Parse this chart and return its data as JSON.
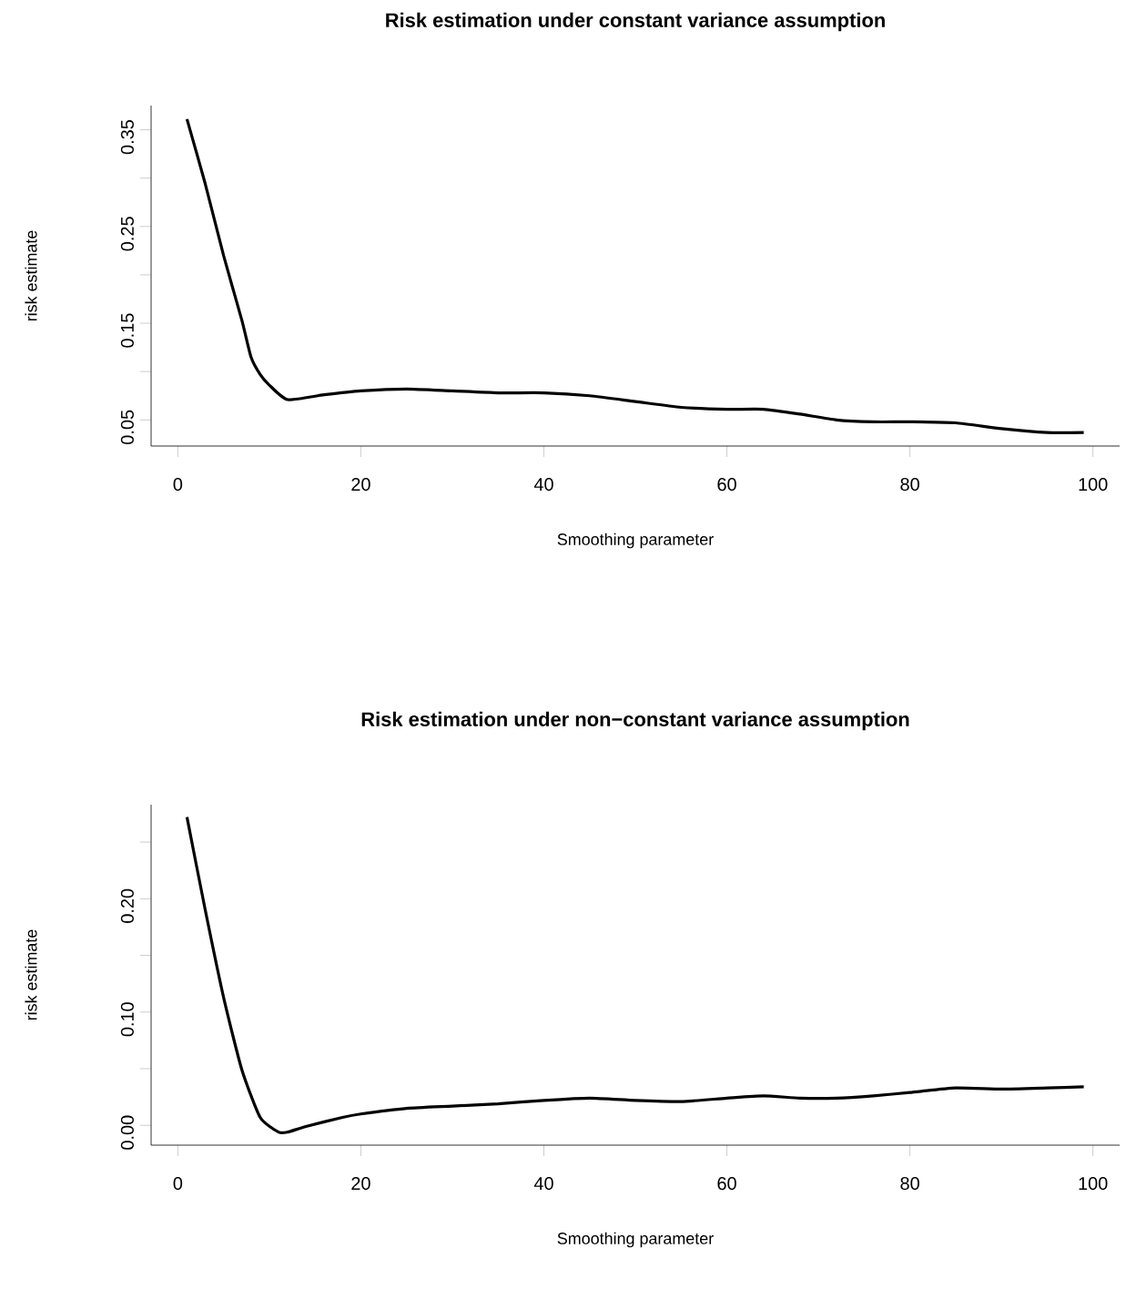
{
  "chart_data": [
    {
      "type": "line",
      "title": "Risk estimation under constant variance assumption",
      "xlabel": "Smoothing parameter",
      "ylabel": "risk estimate",
      "xlim": [
        -2.92,
        102.92
      ],
      "ylim": [
        0.023,
        0.375
      ],
      "xticks": [
        0,
        20,
        40,
        60,
        80,
        100
      ],
      "yticks": [
        0.05,
        {
          "value": 0.1,
          "label": null
        },
        0.15,
        {
          "value": 0.2,
          "label": null
        },
        0.25,
        {
          "value": 0.3,
          "label": null
        },
        0.35
      ],
      "series": [
        {
          "color": "#000000",
          "x": [
            1,
            3,
            5,
            7,
            8,
            9,
            10,
            12,
            16,
            20,
            25,
            30,
            35,
            40,
            45,
            50,
            55,
            60,
            64,
            68,
            72,
            76,
            80,
            85,
            90,
            95,
            99
          ],
          "values": [
            0.361,
            0.294,
            0.22,
            0.153,
            0.115,
            0.097,
            0.086,
            0.071,
            0.076,
            0.08,
            0.082,
            0.08,
            0.078,
            0.078,
            0.075,
            0.069,
            0.063,
            0.061,
            0.061,
            0.056,
            0.05,
            0.048,
            0.048,
            0.047,
            0.041,
            0.037,
            0.037
          ]
        }
      ]
    },
    {
      "type": "line",
      "title": "Risk estimation under non−constant variance assumption",
      "xlabel": "Smoothing parameter",
      "ylabel": "risk estimate",
      "xlim": [
        -2.92,
        102.92
      ],
      "ylim": [
        -0.0175,
        0.283
      ],
      "xticks": [
        0,
        20,
        40,
        60,
        80,
        100
      ],
      "yticks": [
        {
          "value": 0,
          "label": "0.00"
        },
        {
          "value": 0.05,
          "label": null
        },
        {
          "value": 0.1,
          "label": "0.10"
        },
        {
          "value": 0.15,
          "label": null
        },
        {
          "value": 0.2,
          "label": "0.20"
        },
        {
          "value": 0.25,
          "label": null
        }
      ],
      "series": [
        {
          "color": "#000000",
          "x": [
            1,
            3,
            5,
            7,
            9,
            11,
            12,
            14,
            18,
            20,
            25,
            30,
            35,
            40,
            45,
            50,
            55,
            60,
            64,
            68,
            72,
            76,
            80,
            85,
            90,
            95,
            99
          ],
          "values": [
            0.272,
            0.19,
            0.113,
            0.049,
            0.007,
            -0.006,
            -0.006,
            -0.001,
            0.007,
            0.01,
            0.015,
            0.017,
            0.019,
            0.022,
            0.024,
            0.022,
            0.021,
            0.024,
            0.026,
            0.024,
            0.024,
            0.026,
            0.029,
            0.033,
            0.032,
            0.033,
            0.034
          ]
        }
      ]
    }
  ]
}
